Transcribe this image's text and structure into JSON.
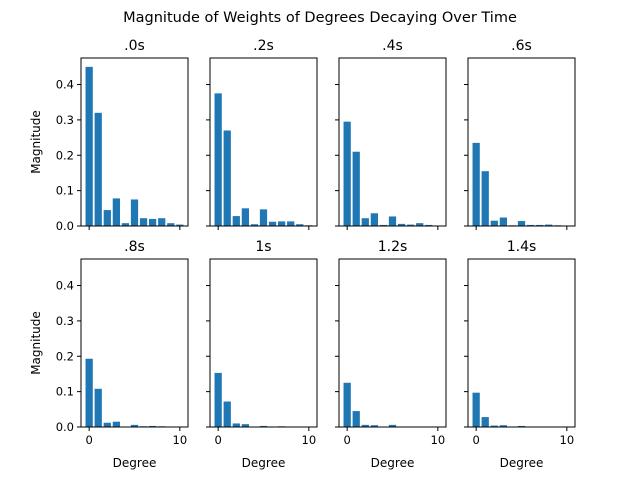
{
  "chart_data": {
    "title": "Magnitude of Weights of Degrees Decaying Over Time",
    "bar_color": "#1f77b4",
    "xlabel": "Degree",
    "ylabel": "Magnitude",
    "ylim": [
      0,
      0.475
    ],
    "xlim": [
      -0.9,
      10.9
    ],
    "yticks": [
      0.0,
      0.1,
      0.2,
      0.3,
      0.4
    ],
    "ytick_labels": [
      "0.0",
      "0.1",
      "0.2",
      "0.3",
      "0.4"
    ],
    "xticks": [
      0,
      10
    ],
    "xtick_labels": [
      "0",
      "10"
    ],
    "grid": false,
    "layout": "2x4",
    "panels": [
      {
        "type": "bar",
        "title": ".0s",
        "x": [
          0,
          1,
          2,
          3,
          4,
          5,
          6,
          7,
          8,
          9,
          10
        ],
        "values": [
          0.45,
          0.32,
          0.045,
          0.078,
          0.008,
          0.075,
          0.022,
          0.02,
          0.022,
          0.008,
          0.004
        ]
      },
      {
        "type": "bar",
        "title": ".2s",
        "x": [
          0,
          1,
          2,
          3,
          4,
          5,
          6,
          7,
          8,
          9,
          10
        ],
        "values": [
          0.375,
          0.27,
          0.028,
          0.05,
          0.005,
          0.047,
          0.012,
          0.013,
          0.013,
          0.005,
          0.002
        ]
      },
      {
        "type": "bar",
        "title": ".4s",
        "x": [
          0,
          1,
          2,
          3,
          4,
          5,
          6,
          7,
          8,
          9,
          10
        ],
        "values": [
          0.295,
          0.21,
          0.022,
          0.036,
          0.003,
          0.027,
          0.006,
          0.004,
          0.008,
          0.003,
          0.001
        ]
      },
      {
        "type": "bar",
        "title": ".6s",
        "x": [
          0,
          1,
          2,
          3,
          4,
          5,
          6,
          7,
          8,
          9,
          10
        ],
        "values": [
          0.235,
          0.155,
          0.015,
          0.024,
          0.002,
          0.014,
          0.003,
          0.003,
          0.004,
          0.002,
          0.001
        ]
      },
      {
        "type": "bar",
        "title": ".8s",
        "x": [
          0,
          1,
          2,
          3,
          4,
          5,
          6,
          7,
          8,
          9,
          10
        ],
        "values": [
          0.193,
          0.108,
          0.012,
          0.015,
          0.001,
          0.006,
          0.002,
          0.003,
          0.002,
          0.001,
          0.001
        ]
      },
      {
        "type": "bar",
        "title": "1s",
        "x": [
          0,
          1,
          2,
          3,
          4,
          5,
          6,
          7,
          8,
          9,
          10
        ],
        "values": [
          0.153,
          0.072,
          0.01,
          0.008,
          0.001,
          0.003,
          0.001,
          0.002,
          0.001,
          0.001,
          0.0
        ]
      },
      {
        "type": "bar",
        "title": "1.2s",
        "x": [
          0,
          1,
          2,
          3,
          4,
          5,
          6,
          7,
          8,
          9,
          10
        ],
        "values": [
          0.125,
          0.045,
          0.006,
          0.005,
          0.001,
          0.006,
          0.001,
          0.001,
          0.001,
          0.0,
          0.0
        ]
      },
      {
        "type": "bar",
        "title": "1.4s",
        "x": [
          0,
          1,
          2,
          3,
          4,
          5,
          6,
          7,
          8,
          9,
          10
        ],
        "values": [
          0.097,
          0.028,
          0.004,
          0.005,
          0.0,
          0.003,
          0.001,
          0.001,
          0.001,
          0.0,
          0.0
        ]
      }
    ]
  }
}
